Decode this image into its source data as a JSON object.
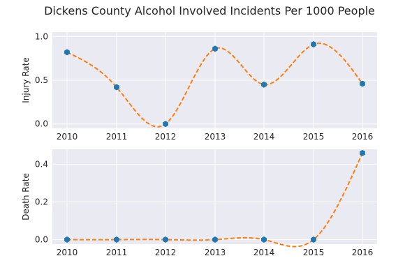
{
  "chart_data": {
    "type": "line",
    "title": "Dickens County Alcohol Involved Incidents Per 1000 People",
    "x": [
      2010,
      2011,
      2012,
      2013,
      2014,
      2015,
      2016
    ],
    "x_tick_labels": [
      "2010",
      "2011",
      "2012",
      "2013",
      "2014",
      "2015",
      "2016"
    ],
    "grid": true,
    "marker_color": "#1f77b4",
    "curve_color": "#ff7f0e",
    "panel_background": "#eaeaf2",
    "panels": [
      {
        "ylabel": "Injury Rate",
        "ylim": [
          -0.05,
          1.05
        ],
        "y_ticks": [
          0.0,
          0.5,
          1.0
        ],
        "y_tick_labels": [
          "0.0",
          "0.5",
          "1.0"
        ],
        "values": [
          0.82,
          0.42,
          0.0,
          0.86,
          0.45,
          0.91,
          0.46
        ]
      },
      {
        "ylabel": "Death Rate",
        "ylim": [
          -0.024,
          0.48
        ],
        "y_ticks": [
          0.0,
          0.2,
          0.4
        ],
        "y_tick_labels": [
          "0.0",
          "0.2",
          "0.4"
        ],
        "values": [
          0.0,
          0.0,
          0.0,
          0.0,
          0.0,
          0.0,
          0.46
        ]
      }
    ]
  }
}
